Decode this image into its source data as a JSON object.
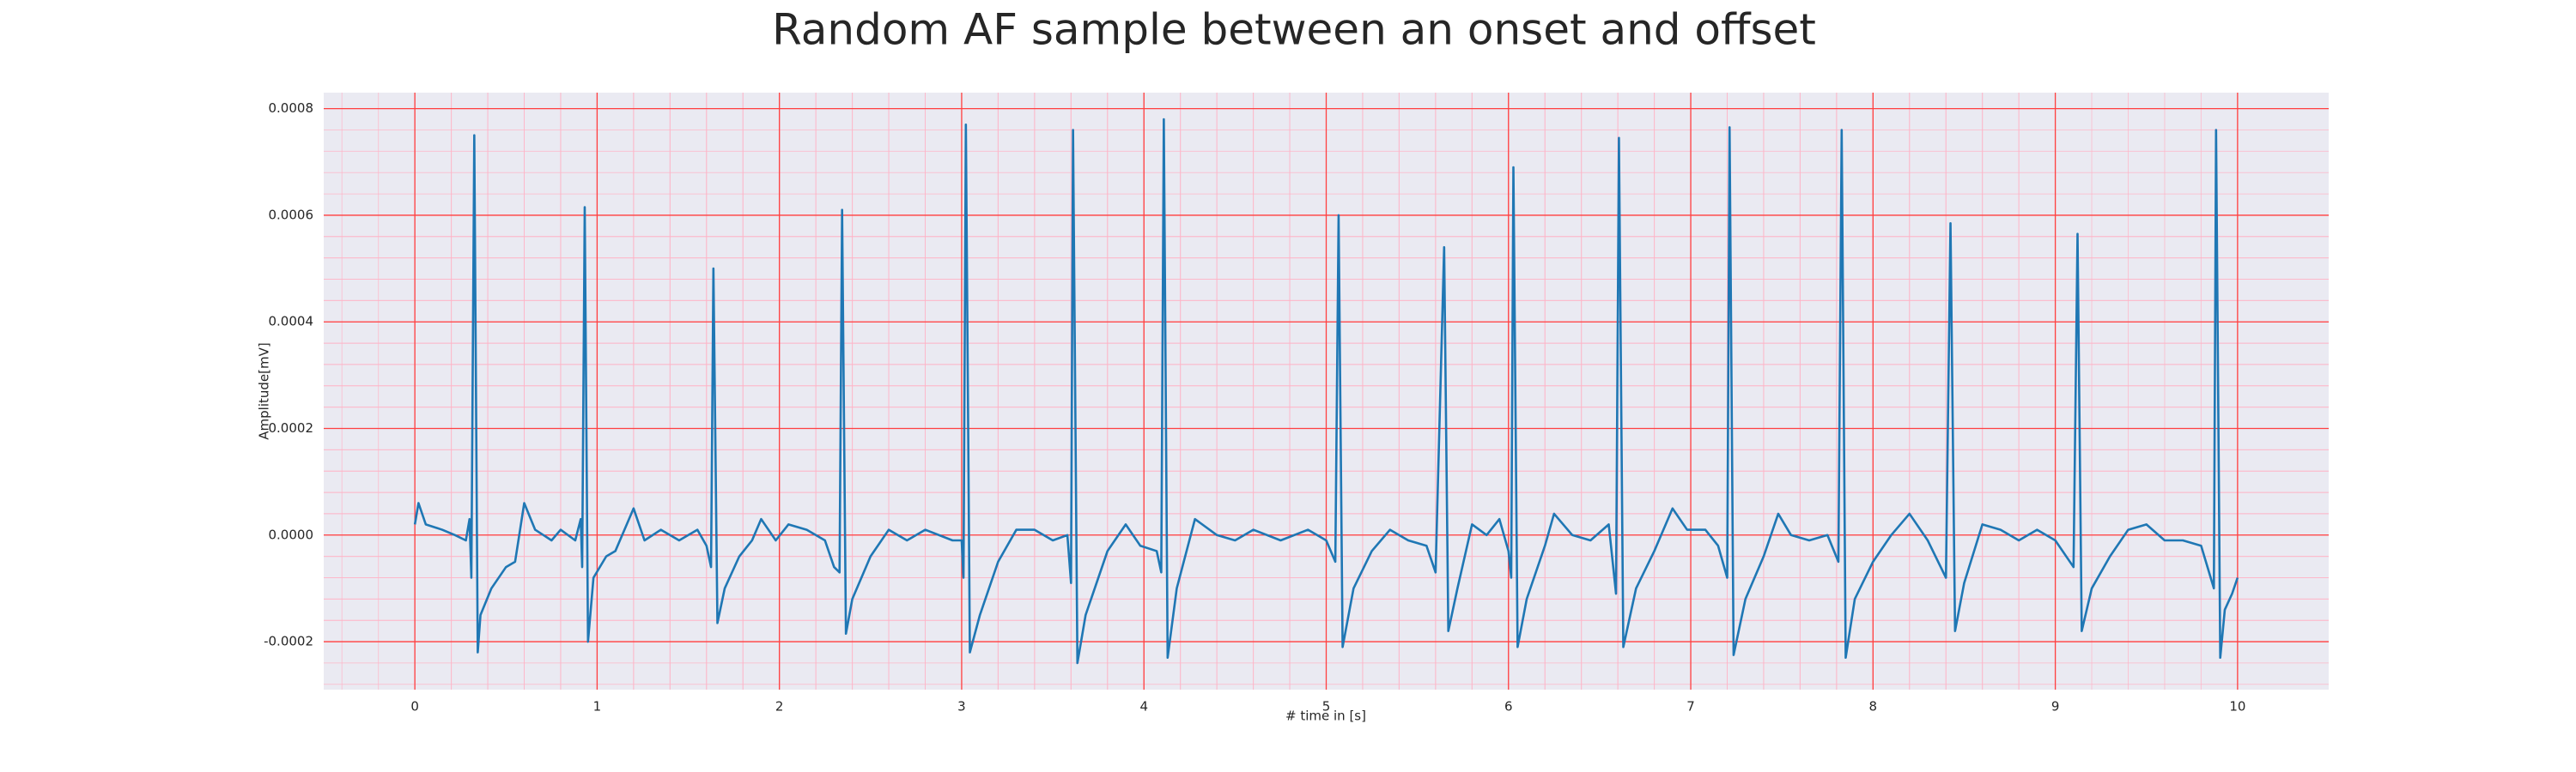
{
  "chart_data": {
    "type": "line",
    "title": "Random AF sample between an onset and offset",
    "x_label": "# time in [s]",
    "y_label": "Amplitude[mV]",
    "x": [
      0,
      0.02,
      0.06,
      0.15,
      0.22,
      0.28,
      0.3,
      0.31,
      0.326,
      0.345,
      0.36,
      0.42,
      0.5,
      0.55,
      0.6,
      0.66,
      0.75,
      0.8,
      0.88,
      0.91,
      0.918,
      0.932,
      0.95,
      0.98,
      1.05,
      1.1,
      1.2,
      1.26,
      1.35,
      1.45,
      1.55,
      1.6,
      1.625,
      1.638,
      1.66,
      1.7,
      1.78,
      1.85,
      1.9,
      1.98,
      2.05,
      2.15,
      2.25,
      2.3,
      2.33,
      2.344,
      2.365,
      2.4,
      2.5,
      2.6,
      2.7,
      2.8,
      2.95,
      3.0,
      3.01,
      3.023,
      3.045,
      3.1,
      3.2,
      3.3,
      3.4,
      3.5,
      3.58,
      3.6,
      3.611,
      3.635,
      3.68,
      3.8,
      3.9,
      3.98,
      4.07,
      4.095,
      4.109,
      4.13,
      4.18,
      4.28,
      4.4,
      4.5,
      4.6,
      4.75,
      4.9,
      5.0,
      5.05,
      5.068,
      5.09,
      5.15,
      5.25,
      5.35,
      5.45,
      5.55,
      5.6,
      5.647,
      5.67,
      5.72,
      5.8,
      5.88,
      5.95,
      6.0,
      6.015,
      6.027,
      6.05,
      6.1,
      6.2,
      6.25,
      6.35,
      6.45,
      6.55,
      6.59,
      6.606,
      6.63,
      6.7,
      6.8,
      6.9,
      6.98,
      7.08,
      7.15,
      7.2,
      7.213,
      7.235,
      7.3,
      7.4,
      7.48,
      7.55,
      7.65,
      7.75,
      7.81,
      7.828,
      7.85,
      7.9,
      8.0,
      8.1,
      8.2,
      8.3,
      8.4,
      8.425,
      8.45,
      8.5,
      8.6,
      8.7,
      8.8,
      8.9,
      9.0,
      9.1,
      9.122,
      9.145,
      9.2,
      9.3,
      9.4,
      9.5,
      9.6,
      9.7,
      9.8,
      9.87,
      9.882,
      9.905,
      9.93,
      9.97,
      10.0
    ],
    "series": [
      {
        "color": "#1f77b4",
        "values": [
          2e-05,
          6e-05,
          2e-05,
          1e-05,
          0.0,
          -1e-05,
          3e-05,
          -8e-05,
          0.00075,
          -0.00022,
          -0.00015,
          -0.0001,
          -6e-05,
          -5e-05,
          6e-05,
          1e-05,
          -1e-05,
          1e-05,
          -1e-05,
          3e-05,
          -6e-05,
          0.000615,
          -0.0002,
          -8e-05,
          -4e-05,
          -3e-05,
          5e-05,
          -1e-05,
          1e-05,
          -1e-05,
          1e-05,
          -2e-05,
          -6e-05,
          0.0005,
          -0.000165,
          -0.0001,
          -4e-05,
          -1e-05,
          3e-05,
          -1e-05,
          2e-05,
          1e-05,
          -1e-05,
          -6e-05,
          -7e-05,
          0.00061,
          -0.000185,
          -0.00012,
          -4e-05,
          1e-05,
          -1e-05,
          1e-05,
          -1e-05,
          -1e-05,
          -8e-05,
          0.00077,
          -0.00022,
          -0.00015,
          -5e-05,
          1e-05,
          1e-05,
          -1e-05,
          0.0,
          -9e-05,
          0.00076,
          -0.00024,
          -0.00015,
          -3e-05,
          2e-05,
          -2e-05,
          -3e-05,
          -7e-05,
          0.00078,
          -0.00023,
          -0.0001,
          3e-05,
          0.0,
          -1e-05,
          1e-05,
          -1e-05,
          1e-05,
          -1e-05,
          -5e-05,
          0.0006,
          -0.00021,
          -0.0001,
          -3e-05,
          1e-05,
          -1e-05,
          -2e-05,
          -7e-05,
          0.00054,
          -0.00018,
          -0.0001,
          2e-05,
          0.0,
          3e-05,
          -3e-05,
          -8e-05,
          0.00069,
          -0.00021,
          -0.00012,
          -2e-05,
          4e-05,
          0.0,
          -1e-05,
          2e-05,
          -0.00011,
          0.000745,
          -0.00021,
          -0.0001,
          -3e-05,
          5e-05,
          1e-05,
          1e-05,
          -2e-05,
          -8e-05,
          0.000765,
          -0.000225,
          -0.00012,
          -4e-05,
          4e-05,
          0.0,
          -1e-05,
          0.0,
          -5e-05,
          0.00076,
          -0.00023,
          -0.00012,
          -5e-05,
          0.0,
          4e-05,
          -1e-05,
          -8e-05,
          0.000585,
          -0.00018,
          -9e-05,
          2e-05,
          1e-05,
          -1e-05,
          1e-05,
          -1e-05,
          -6e-05,
          0.000565,
          -0.00018,
          -0.0001,
          -4e-05,
          1e-05,
          2e-05,
          -1e-05,
          -1e-05,
          -2e-05,
          -0.0001,
          0.00076,
          -0.00023,
          -0.00014,
          -0.00011,
          -8e-05
        ]
      }
    ],
    "xlim": [
      -0.5,
      10.5
    ],
    "ylim": [
      -0.00029,
      0.00083
    ],
    "xticks": [
      0,
      1,
      2,
      3,
      4,
      5,
      6,
      7,
      8,
      9,
      10
    ],
    "yticks": [
      {
        "value": -0.0002,
        "label": "-0.0002"
      },
      {
        "value": 0,
        "label": "0.0000"
      },
      {
        "value": 0.0002,
        "label": "0.0002"
      },
      {
        "value": 0.0004,
        "label": "0.0004"
      },
      {
        "value": 0.0006,
        "label": "0.0006"
      },
      {
        "value": 0.0008,
        "label": "0.0008"
      }
    ],
    "grid": true,
    "minor_grid": true
  }
}
